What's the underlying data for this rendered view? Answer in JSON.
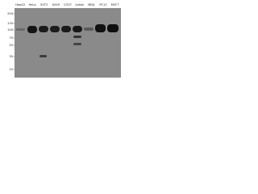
{
  "lanes": [
    "HepG2",
    "HeLa",
    "SVT2",
    "A549",
    "COS7",
    "Jurkat",
    "MDA",
    "PC12",
    "MCF7"
  ],
  "markers": [
    "250",
    "130",
    "100",
    "70",
    "55",
    "35",
    "25"
  ]
}
